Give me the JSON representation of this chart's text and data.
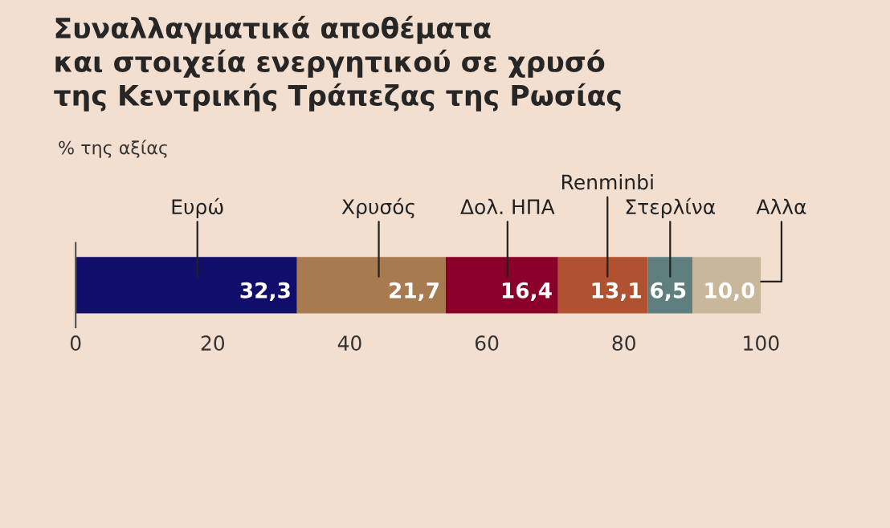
{
  "chart_data": {
    "type": "bar",
    "orientation": "horizontal",
    "stacked": true,
    "title": "Συναλλαγματικά αποθέματα\nκαι στοιχεία ενεργητικού σε χρυσό\nτης Κεντρικής Τράπεζας της Ρωσίας",
    "subtitle": "% της αξίας",
    "categories": [
      null
    ],
    "series": [
      {
        "name": "Ευρώ",
        "color": "#110d6b",
        "values": [
          32.3
        ],
        "value_labels": [
          "32,3"
        ]
      },
      {
        "name": "Χρυσός",
        "color": "#a87a50",
        "values": [
          21.7
        ],
        "value_labels": [
          "21,7"
        ]
      },
      {
        "name": "Δολ. ΗΠΑ",
        "color": "#8b0029",
        "values": [
          16.4
        ],
        "value_labels": [
          "16,4"
        ]
      },
      {
        "name": "Renminbi",
        "color": "#b0512f",
        "values": [
          13.1
        ],
        "value_labels": [
          "13,1"
        ]
      },
      {
        "name": "Στερλίνα",
        "color": "#5f7f7f",
        "values": [
          6.5
        ],
        "value_labels": [
          "6,5"
        ]
      },
      {
        "name": "Αλλα",
        "color": "#c9b79b",
        "values": [
          10.0
        ],
        "value_labels": [
          "10,0"
        ]
      }
    ],
    "xlim": [
      0,
      100
    ],
    "xticks": [
      0,
      20,
      40,
      60,
      80,
      100
    ],
    "tick_labels": "x",
    "grid": false,
    "legend": false
  }
}
